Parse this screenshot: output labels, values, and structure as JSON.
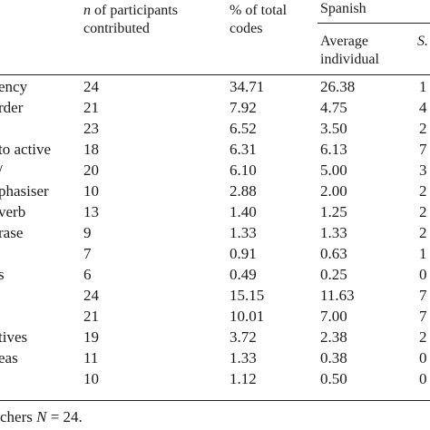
{
  "header": {
    "n_label": "n of participants",
    "n_label_rest": "contributed",
    "pct_label": "% of total",
    "pct_label_rest": "codes",
    "group_label": "Spanish",
    "avg_label": "Average",
    "avg_label_rest": "individual",
    "sd_label": "S."
  },
  "rows": [
    {
      "label": "ency",
      "n": "24",
      "pct": "34.71",
      "avg": "26.38",
      "sd": "1"
    },
    {
      "label": "rder",
      "n": "21",
      "pct": "7.92",
      "avg": "4.75",
      "sd": "4"
    },
    {
      "label": "",
      "n": "23",
      "pct": "6.52",
      "avg": "3.50",
      "sd": "2"
    },
    {
      "label": "to active",
      "n": "18",
      "pct": "6.31",
      "avg": "6.13",
      "sd": "7"
    },
    {
      "label": "/",
      "n": "20",
      "pct": "6.10",
      "avg": "5.00",
      "sd": "3"
    },
    {
      "label": "phasiser",
      "n": "10",
      "pct": "2.88",
      "avg": "2.00",
      "sd": "2"
    },
    {
      "label": "verb",
      "n": "13",
      "pct": "1.40",
      "avg": "1.25",
      "sd": "2"
    },
    {
      "label": "rase",
      "n": "9",
      "pct": "1.33",
      "avg": "1.33",
      "sd": "2"
    },
    {
      "label": "",
      "n": "7",
      "pct": "0.91",
      "avg": "0.63",
      "sd": "1"
    },
    {
      "label": "s",
      "n": "6",
      "pct": "0.49",
      "avg": "0.25",
      "sd": "0"
    },
    {
      "label": "",
      "n": "24",
      "pct": "15.15",
      "avg": "11.63",
      "sd": "7"
    },
    {
      "label": "",
      "n": "21",
      "pct": "10.01",
      "avg": "7.00",
      "sd": "7"
    },
    {
      "label": "tives",
      "n": "19",
      "pct": "3.72",
      "avg": "2.38",
      "sd": "2"
    },
    {
      "label": "eas",
      "n": "11",
      "pct": "1.33",
      "avg": "0.38",
      "sd": "0"
    },
    {
      "label": "",
      "n": "10",
      "pct": "1.12",
      "avg": "0.50",
      "sd": "0"
    }
  ],
  "footnote": "chers N = 24."
}
